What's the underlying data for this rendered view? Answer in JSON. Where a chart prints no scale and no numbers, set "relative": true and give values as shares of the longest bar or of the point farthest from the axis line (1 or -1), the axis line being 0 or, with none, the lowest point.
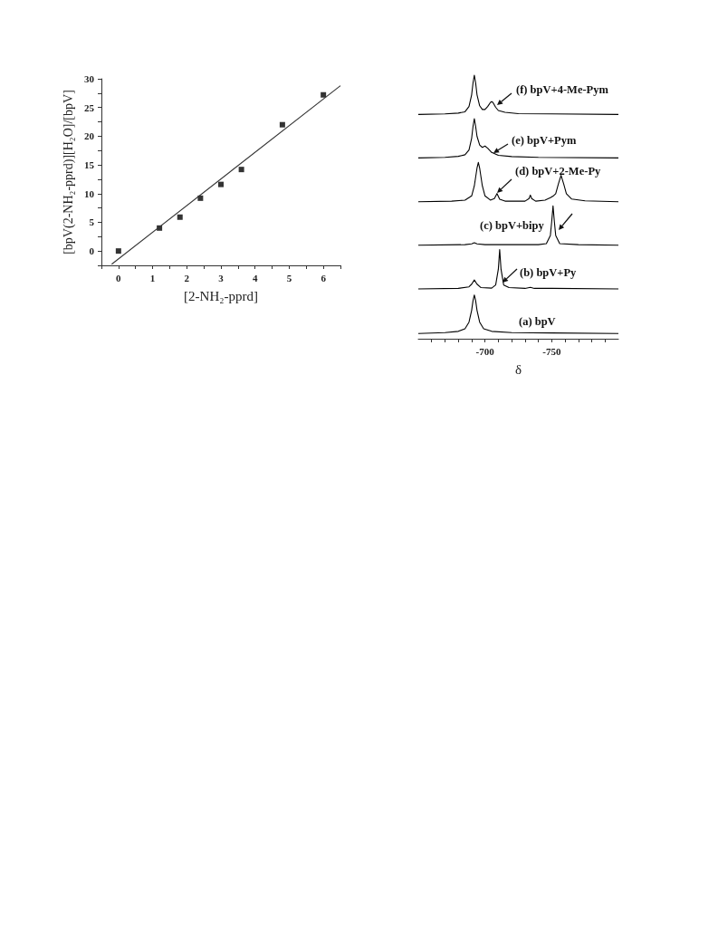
{
  "chart_data": [
    {
      "type": "scatter",
      "xlabel": "[2-NH₂-pprd]",
      "ylabel": "[bpV(2-NH₂-pprd)][H₂O]/[bpV]",
      "xlim": [
        -0.5,
        6.5
      ],
      "ylim": [
        -2.5,
        30
      ],
      "xticks": [
        {
          "value": -0.5,
          "label": null
        },
        0,
        {
          "value": 0.5,
          "label": null
        },
        1,
        {
          "value": 1.5,
          "label": null
        },
        2,
        {
          "value": 2.5,
          "label": null
        },
        3,
        {
          "value": 3.5,
          "label": null
        },
        4,
        {
          "value": 4.5,
          "label": null
        },
        5,
        {
          "value": 5.5,
          "label": null
        },
        6,
        {
          "value": 6.5,
          "label": null
        }
      ],
      "yticks": [
        {
          "value": -2.5,
          "label": null
        },
        0,
        {
          "value": 2.5,
          "label": null
        },
        5,
        {
          "value": 7.5,
          "label": null
        },
        10,
        {
          "value": 12.5,
          "label": null
        },
        15,
        {
          "value": 17.5,
          "label": null
        },
        20,
        {
          "value": 22.5,
          "label": null
        },
        25,
        {
          "value": 27.5,
          "label": null
        },
        30
      ],
      "series": [
        {
          "marker": "square",
          "color": "#000000",
          "x": [
            0,
            1.2,
            1.8,
            2.4,
            3.0,
            3.6,
            4.8,
            6.0
          ],
          "values": [
            0,
            4.0,
            5.9,
            9.2,
            11.6,
            14.2,
            22.0,
            27.2
          ]
        },
        {
          "type": "line",
          "marker": "none",
          "line_style": "solid",
          "color": "#333333",
          "x": [
            -0.2,
            6.5
          ],
          "values": [
            -2.3,
            28.8
          ]
        }
      ]
    },
    {
      "type": "line",
      "relative": true,
      "tick_labels": "x",
      "marker": "none",
      "xlabel": "δ",
      "xlim": [
        -650,
        -800
      ],
      "xticks": [
        {
          "value": -660,
          "label": null
        },
        {
          "value": -670,
          "label": null
        },
        {
          "value": -680,
          "label": null
        },
        {
          "value": -690,
          "label": null
        },
        -700,
        {
          "value": -710,
          "label": null
        },
        {
          "value": -720,
          "label": null
        },
        {
          "value": -730,
          "label": null
        },
        {
          "value": -740,
          "label": null
        },
        -750,
        {
          "value": -760,
          "label": null
        },
        {
          "value": -770,
          "label": null
        },
        {
          "value": -780,
          "label": null
        },
        {
          "value": -790,
          "label": null
        }
      ],
      "series": [
        {
          "name": "(f) bpV+4-Me-Pym",
          "color": "#000000",
          "x": [
            -650,
            -670,
            -680,
            -685,
            -688,
            -690,
            -691,
            -692,
            -693,
            -694,
            -696,
            -698,
            -700,
            -702,
            -704,
            -705,
            -706,
            -708,
            -710,
            -715,
            -725,
            -750,
            -800
          ],
          "values": [
            0.851,
            0.853,
            0.856,
            0.861,
            0.881,
            0.926,
            0.97,
            1.0,
            0.97,
            0.926,
            0.884,
            0.87,
            0.87,
            0.881,
            0.896,
            0.9,
            0.896,
            0.878,
            0.866,
            0.859,
            0.854,
            0.853,
            0.851
          ]
        },
        {
          "name": "(e) bpV+Pym",
          "color": "#000000",
          "x": [
            -650,
            -670,
            -680,
            -685,
            -688,
            -690,
            -691,
            -692,
            -693,
            -694,
            -696,
            -698,
            -700,
            -702,
            -705,
            -710,
            -720,
            -740,
            -800
          ],
          "values": [
            0.686,
            0.688,
            0.692,
            0.698,
            0.716,
            0.761,
            0.805,
            0.835,
            0.805,
            0.768,
            0.735,
            0.726,
            0.731,
            0.723,
            0.707,
            0.696,
            0.691,
            0.688,
            0.686
          ]
        },
        {
          "name": "(d) bpV+2-Me-Py",
          "color": "#000000",
          "x": [
            -650,
            -675,
            -685,
            -690,
            -692,
            -694,
            -695,
            -696,
            -698,
            -700,
            -704,
            -707,
            -709,
            -711,
            -715,
            -730,
            -733,
            -734,
            -735,
            -738,
            -745,
            -749,
            -751,
            -753,
            -755,
            -757,
            -759,
            -761,
            -765,
            -775,
            -800
          ],
          "values": [
            0.52,
            0.522,
            0.526,
            0.542,
            0.58,
            0.647,
            0.669,
            0.647,
            0.58,
            0.542,
            0.526,
            0.532,
            0.551,
            0.529,
            0.522,
            0.522,
            0.532,
            0.545,
            0.532,
            0.522,
            0.526,
            0.535,
            0.541,
            0.55,
            0.587,
            0.62,
            0.587,
            0.55,
            0.53,
            0.523,
            0.52
          ]
        },
        {
          "name": "(c) bpV+bipy",
          "color": "#000000",
          "x": [
            -650,
            -685,
            -690,
            -692,
            -694,
            -700,
            -740,
            -746,
            -749,
            -750,
            -751,
            -752,
            -753,
            -756,
            -770,
            -800
          ],
          "values": [
            0.355,
            0.357,
            0.36,
            0.364,
            0.36,
            0.357,
            0.357,
            0.361,
            0.392,
            0.444,
            0.504,
            0.444,
            0.392,
            0.361,
            0.357,
            0.355
          ]
        },
        {
          "name": "(b) bpV+Py",
          "color": "#000000",
          "x": [
            -650,
            -680,
            -688,
            -690,
            -692,
            -694,
            -697,
            -705,
            -708,
            -710,
            -711,
            -712,
            -714,
            -718,
            -730,
            -734,
            -737,
            -750,
            -800
          ],
          "values": [
            0.189,
            0.191,
            0.197,
            0.207,
            0.223,
            0.207,
            0.194,
            0.192,
            0.204,
            0.264,
            0.338,
            0.264,
            0.204,
            0.194,
            0.191,
            0.195,
            0.191,
            0.191,
            0.189
          ]
        },
        {
          "name": "(a) bpV",
          "color": "#000000",
          "x": [
            -650,
            -670,
            -680,
            -685,
            -688,
            -690,
            -691,
            -692,
            -693,
            -694,
            -696,
            -699,
            -705,
            -720,
            -750,
            -800
          ],
          "values": [
            0.02,
            0.023,
            0.028,
            0.038,
            0.063,
            0.108,
            0.144,
            0.166,
            0.144,
            0.108,
            0.063,
            0.038,
            0.028,
            0.023,
            0.022,
            0.02
          ]
        }
      ]
    }
  ]
}
